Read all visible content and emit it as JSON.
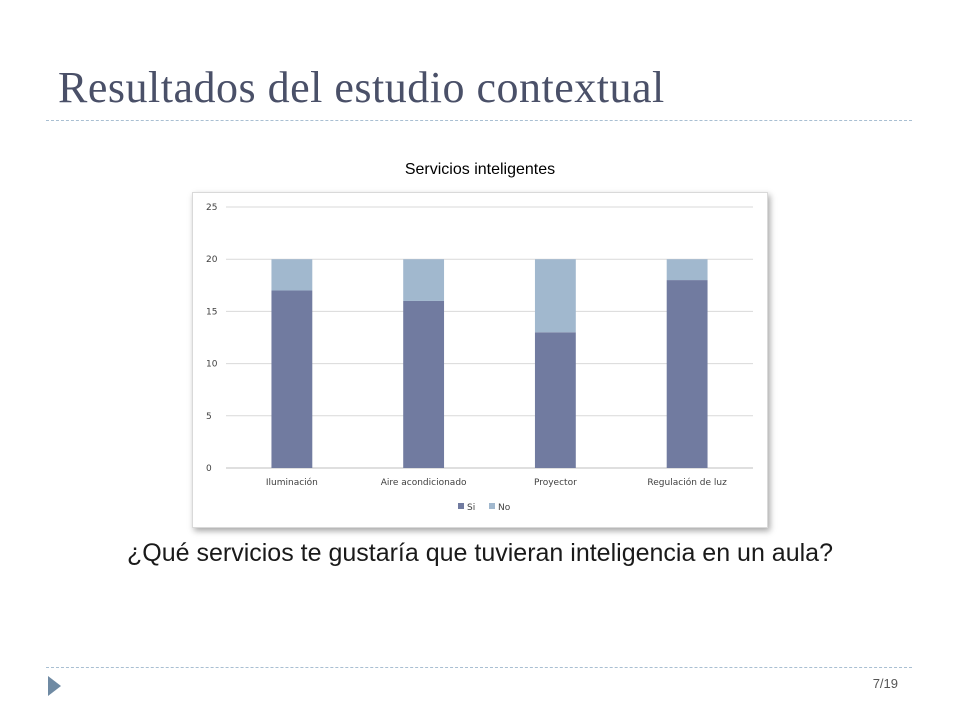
{
  "slide": {
    "title": "Resultados del estudio contextual",
    "question": "¿Qué servicios te gustaría que tuvieran inteligencia en un aula?",
    "page_number": "7/19"
  },
  "chart_data": {
    "type": "bar",
    "stacked": true,
    "title": "Servicios inteligentes",
    "categories": [
      "Iluminación",
      "Aire acondicionado",
      "Proyector",
      "Regulación de luz"
    ],
    "series": [
      {
        "name": "Si",
        "values": [
          17,
          16,
          13,
          18
        ],
        "color": "#717ba0"
      },
      {
        "name": "No",
        "values": [
          3,
          4,
          7,
          2
        ],
        "color": "#a1b8ce"
      }
    ],
    "xlabel": "",
    "ylabel": "",
    "ylim": [
      0,
      25
    ],
    "yticks": [
      0,
      5,
      10,
      15,
      20,
      25
    ],
    "grid": true,
    "legend_position": "bottom"
  },
  "colors": {
    "title": "#4a5068",
    "divider": "#a9bfd2",
    "nav_arrow": "#6f8aa3"
  },
  "icons": {
    "nav": "triangle-right-icon"
  }
}
